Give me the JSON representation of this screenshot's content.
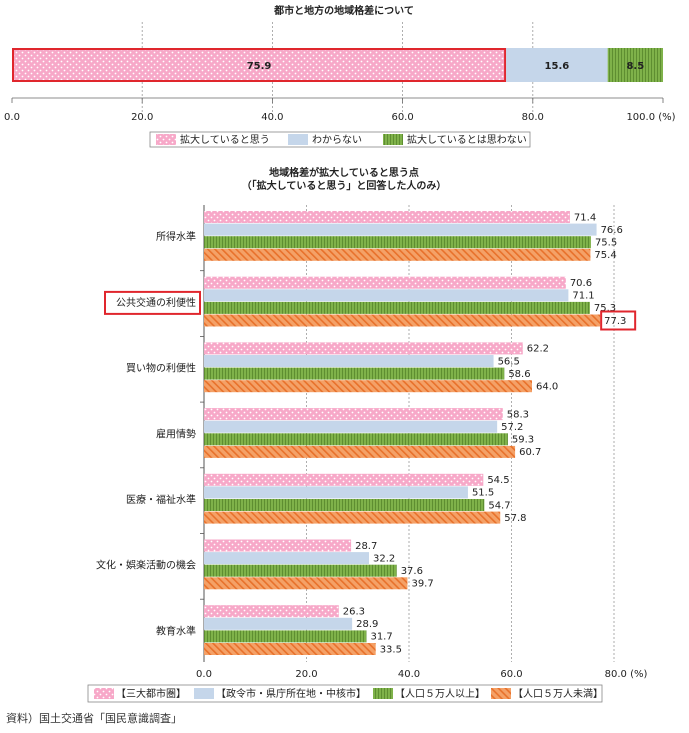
{
  "colors": {
    "pink": "#f7a8c8",
    "pink_dot": "#ffffff",
    "blue": "#c5d6ea",
    "green": "#7fb24a",
    "green_stripe": "#5e8e31",
    "orange": "#f4a167",
    "orange_stripe": "#e8712b",
    "highlight": "#e0262d",
    "grid": "#9a9a9a"
  },
  "chart_data": [
    {
      "type": "bar",
      "orientation": "horizontal",
      "stacked": true,
      "title": "都市と地方の地域格差について",
      "unit": "(%)",
      "xlim": [
        0,
        100
      ],
      "ticks": [
        "0.0",
        "20.0",
        "40.0",
        "60.0",
        "80.0",
        "100.0"
      ],
      "segments": [
        {
          "name": "拡大していると思う",
          "value": 75.9,
          "label": "75.9",
          "highlight": true
        },
        {
          "name": "わからない",
          "value": 15.6,
          "label": "15.6"
        },
        {
          "name": "拡大しているとは思わない",
          "value": 8.5,
          "label": "8.5"
        }
      ],
      "legend": [
        "拡大していると思う",
        "わからない",
        "拡大しているとは思わない"
      ],
      "legend_position": "bottom",
      "grid": "dashed vertical"
    },
    {
      "type": "bar",
      "orientation": "horizontal",
      "title": "地域格差が拡大していると思う点",
      "subtitle": "（「拡大していると思う」と回答した人のみ）",
      "unit": "(%)",
      "xlim": [
        0,
        80
      ],
      "ticks": [
        "0.0",
        "20.0",
        "40.0",
        "60.0",
        "80.0"
      ],
      "categories": [
        "所得水準",
        "公共交通の利便性",
        "買い物の利便性",
        "雇用情勢",
        "医療・福祉水準",
        "文化・娯楽活動の機会",
        "教育水準"
      ],
      "highlight_category": "公共交通の利便性",
      "highlight_value": {
        "category": "公共交通の利便性",
        "series": 3
      },
      "series": [
        {
          "name": "【三大都市圏】",
          "values": [
            71.4,
            70.6,
            62.2,
            58.3,
            54.5,
            28.7,
            26.3
          ],
          "labels": [
            "71.4",
            "70.6",
            "62.2",
            "58.3",
            "54.5",
            "28.7",
            "26.3"
          ]
        },
        {
          "name": "【政令市・県庁所在地・中核市】",
          "values": [
            76.6,
            71.1,
            56.5,
            57.2,
            51.5,
            32.2,
            28.9
          ],
          "labels": [
            "76.6",
            "71.1",
            "56.5",
            "57.2",
            "51.5",
            "32.2",
            "28.9"
          ]
        },
        {
          "name": "【人口５万人以上】",
          "values": [
            75.5,
            75.3,
            58.6,
            59.3,
            54.7,
            37.6,
            31.7
          ],
          "labels": [
            "75.5",
            "75.3",
            "58.6",
            "59.3",
            "54.7",
            "37.6",
            "31.7"
          ]
        },
        {
          "name": "【人口５万人未満】",
          "values": [
            75.4,
            77.3,
            64.0,
            60.7,
            57.8,
            39.7,
            33.5
          ],
          "labels": [
            "75.4",
            "77.3",
            "64.0",
            "60.7",
            "57.8",
            "39.7",
            "33.5"
          ]
        }
      ],
      "legend_position": "bottom",
      "grid": "dashed vertical"
    }
  ],
  "source": "資料）国土交通省「国民意識調査」"
}
